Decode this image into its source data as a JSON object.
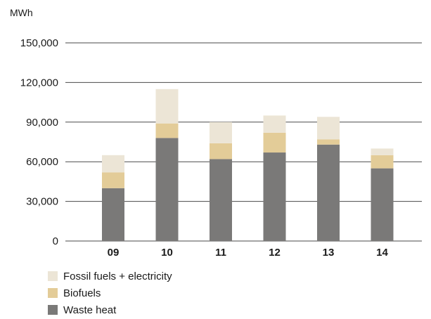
{
  "chart_data": {
    "type": "bar",
    "stacked": true,
    "ylabel": "MWh",
    "ylim": [
      0,
      150000
    ],
    "yticks": [
      "0",
      "30,000",
      "60,000",
      "90,000",
      "120,000",
      "150,000"
    ],
    "ytick_values": [
      0,
      30000,
      60000,
      90000,
      120000,
      150000
    ],
    "categories": [
      "09",
      "10",
      "11",
      "12",
      "13",
      "14"
    ],
    "grid": true,
    "legend_position": "bottom-left",
    "series": [
      {
        "name": "Waste heat",
        "color": "#7a7978",
        "values": [
          40000,
          78000,
          62000,
          67000,
          73000,
          55000
        ]
      },
      {
        "name": "Biofuels",
        "color": "#e3cc98",
        "values": [
          12000,
          11000,
          12000,
          15000,
          4000,
          10000
        ]
      },
      {
        "name": "Fossil fuels + electricity",
        "color": "#ece5d6",
        "values": [
          13000,
          26000,
          16000,
          13000,
          17000,
          5000
        ]
      }
    ],
    "legend": [
      "Fossil fuels + electricity",
      "Biofuels",
      "Waste heat"
    ]
  }
}
